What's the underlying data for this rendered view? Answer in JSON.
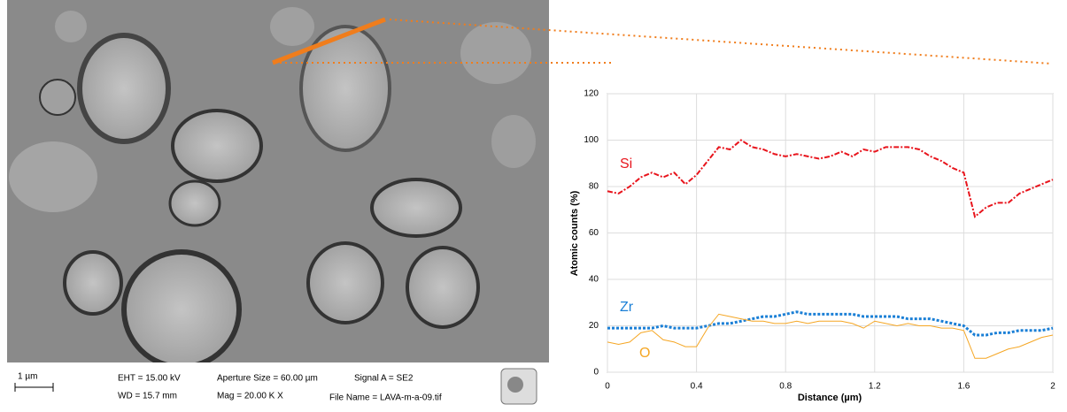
{
  "sem_image": {
    "scale_bar": "1 µm",
    "info": [
      "EHT = 15.00 kV",
      "WD = 15.7 mm",
      "Aperture Size = 60.00 µm",
      "Mag =  20.00 K X",
      "Signal A = SE2",
      "File Name = LAVA-m-a-09.tif"
    ]
  },
  "chart_data": {
    "type": "line",
    "xlabel": "Distance (µm)",
    "ylabel": "Atomic counts (%)",
    "x": [
      0,
      0.05,
      0.1,
      0.15,
      0.2,
      0.25,
      0.3,
      0.35,
      0.4,
      0.45,
      0.5,
      0.55,
      0.6,
      0.65,
      0.7,
      0.75,
      0.8,
      0.85,
      0.9,
      0.95,
      1,
      1.05,
      1.1,
      1.15,
      1.2,
      1.25,
      1.3,
      1.35,
      1.4,
      1.45,
      1.5,
      1.55,
      1.6,
      1.65,
      1.7,
      1.75,
      1.8,
      1.85,
      1.9,
      1.95,
      2
    ],
    "series": [
      {
        "name": "Si",
        "color": "#e8141c",
        "linestyle": "dashdot",
        "values": [
          78,
          77,
          80,
          84,
          86,
          84,
          86,
          81,
          85,
          91,
          97,
          96,
          100,
          97,
          96,
          94,
          93,
          94,
          93,
          92,
          93,
          95,
          93,
          96,
          95,
          97,
          97,
          97,
          96,
          93,
          91,
          88,
          86,
          67,
          71,
          73,
          73,
          77,
          79,
          81,
          83
        ]
      },
      {
        "name": "Zr",
        "color": "#1a7fd6",
        "linestyle": "dotted",
        "values": [
          19,
          19,
          19,
          19,
          19,
          20,
          19,
          19,
          19,
          20,
          21,
          21,
          22,
          23,
          24,
          24,
          25,
          26,
          25,
          25,
          25,
          25,
          25,
          24,
          24,
          24,
          24,
          23,
          23,
          23,
          22,
          21,
          20,
          16,
          16,
          17,
          17,
          18,
          18,
          18,
          19
        ]
      },
      {
        "name": "O",
        "color": "#f5a623",
        "linestyle": "solid",
        "values": [
          13,
          12,
          13,
          17,
          18,
          14,
          13,
          11,
          11,
          19,
          25,
          24,
          23,
          22,
          22,
          21,
          21,
          22,
          21,
          22,
          22,
          22,
          21,
          19,
          22,
          21,
          20,
          21,
          20,
          20,
          19,
          19,
          18,
          6,
          6,
          8,
          10,
          11,
          13,
          15,
          16
        ]
      }
    ],
    "xlim": [
      0,
      2
    ],
    "xticks": [
      0,
      0.4,
      0.8,
      1.2,
      1.6,
      2
    ],
    "ylim": [
      0,
      120
    ],
    "yticks": [
      0,
      20,
      40,
      60,
      80,
      100,
      120
    ],
    "grid": true
  }
}
